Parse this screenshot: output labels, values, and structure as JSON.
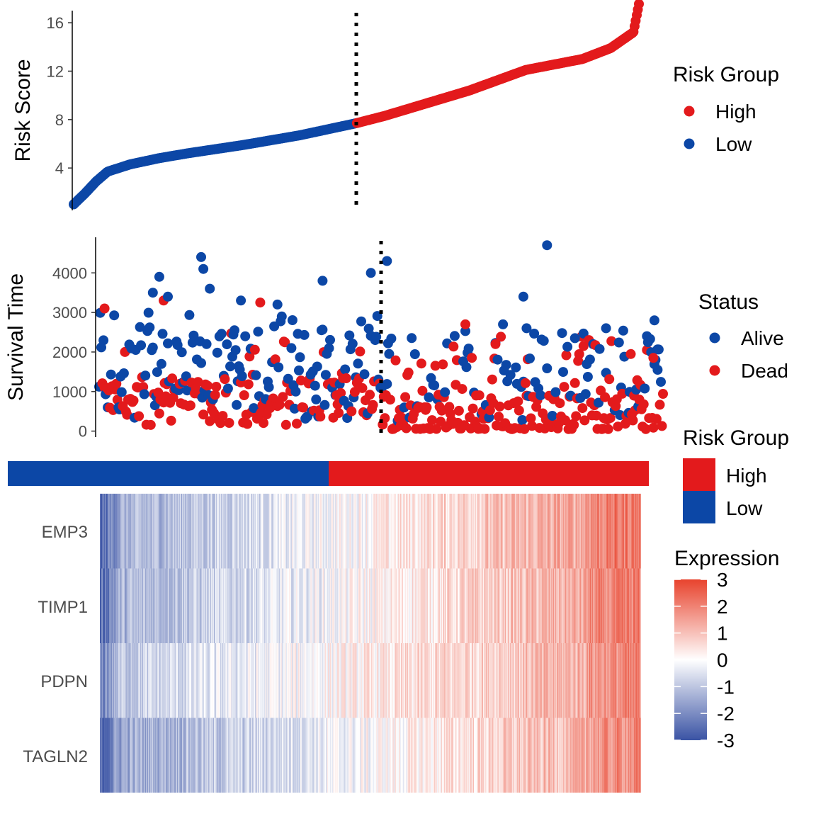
{
  "colors": {
    "high": "#e31a1c",
    "low": "#0c47a6",
    "cutoff_line": "#000000"
  },
  "chart_data": [
    {
      "id": "risk_score",
      "type": "scatter",
      "title": "",
      "xlabel": "",
      "ylabel": "Risk Score",
      "ylim": [
        0.5,
        17
      ],
      "yticks": [
        4,
        8,
        12,
        16
      ],
      "n_samples": 526,
      "n_low": 263,
      "cutoff_index": 263,
      "score_curve": {
        "x_fraction": [
          0,
          0.02,
          0.04,
          0.06,
          0.08,
          0.1,
          0.15,
          0.2,
          0.3,
          0.4,
          0.45,
          0.5,
          0.55,
          0.6,
          0.7,
          0.8,
          0.9,
          0.95,
          0.99,
          1.0
        ],
        "y": [
          1.0,
          1.9,
          2.9,
          3.7,
          4.0,
          4.3,
          4.8,
          5.2,
          5.9,
          6.7,
          7.2,
          7.7,
          8.3,
          9.0,
          10.4,
          12.1,
          13.0,
          13.9,
          15.2,
          16.3
        ]
      },
      "legend": {
        "title": "Risk Group",
        "items": [
          "High",
          "Low"
        ],
        "placement": "right"
      }
    },
    {
      "id": "survival",
      "type": "scatter",
      "title": "",
      "xlabel": "",
      "ylabel": "Survival Time",
      "ylim": [
        -150,
        4900
      ],
      "yticks": [
        0,
        1000,
        2000,
        3000,
        4000
      ],
      "cutoff_index": 263,
      "legend": {
        "title": "Status",
        "items": [
          "Alive",
          "Dead"
        ],
        "placement": "right"
      },
      "highlight_points": [
        {
          "i": 95,
          "t": 4400,
          "status": "Alive"
        },
        {
          "i": 97,
          "t": 4100,
          "status": "Alive"
        },
        {
          "i": 103,
          "t": 3600,
          "status": "Alive"
        },
        {
          "i": 56,
          "t": 3900,
          "status": "Alive"
        },
        {
          "i": 50,
          "t": 3500,
          "status": "Alive"
        },
        {
          "i": 60,
          "t": 3300,
          "status": "Dead"
        },
        {
          "i": 5,
          "t": 3100,
          "status": "Dead"
        },
        {
          "i": 64,
          "t": 3400,
          "status": "Alive"
        },
        {
          "i": 208,
          "t": 3800,
          "status": "Alive"
        },
        {
          "i": 253,
          "t": 4000,
          "status": "Alive"
        },
        {
          "i": 268,
          "t": 4300,
          "status": "Alive"
        },
        {
          "i": 417,
          "t": 4700,
          "status": "Alive"
        },
        {
          "i": 395,
          "t": 3400,
          "status": "Alive"
        },
        {
          "i": 398,
          "t": 2600,
          "status": "Alive"
        },
        {
          "i": 376,
          "t": 2700,
          "status": "Alive"
        },
        {
          "i": 443,
          "t": 2350,
          "status": "Alive"
        },
        {
          "i": 472,
          "t": 2600,
          "status": "Alive"
        },
        {
          "i": 510,
          "t": 2400,
          "status": "Alive"
        },
        {
          "i": 517,
          "t": 2800,
          "status": "Alive"
        },
        {
          "i": 341,
          "t": 2700,
          "status": "Dead"
        },
        {
          "i": 369,
          "t": 2200,
          "status": "Dead"
        },
        {
          "i": 451,
          "t": 2150,
          "status": "Dead"
        },
        {
          "i": 516,
          "t": 1850,
          "status": "Dead"
        },
        {
          "i": 520,
          "t": 1550,
          "status": "Alive"
        },
        {
          "i": 150,
          "t": 3250,
          "status": "Dead"
        },
        {
          "i": 132,
          "t": 3300,
          "status": "Alive"
        },
        {
          "i": 166,
          "t": 3200,
          "status": "Alive"
        }
      ]
    },
    {
      "id": "heatmap",
      "type": "heatmap",
      "title": "",
      "rows": [
        "EMP3",
        "TIMP1",
        "PDPN",
        "TAGLN2"
      ],
      "columns": 526,
      "group_bar": {
        "title": "Risk Group",
        "items": [
          "High",
          "Low"
        ],
        "low_fraction": 0.5
      },
      "color_scale": {
        "title": "Expression",
        "min": -3,
        "mid": 0,
        "max": 3,
        "low_color": "#3a53a4",
        "mid_color": "#ffffff",
        "high_color": "#e8432d",
        "ticks": [
          "3",
          "2",
          "1",
          "0",
          "-1",
          "-2",
          "-3"
        ]
      },
      "row_trend": {
        "EMP3": [
          -1.5,
          1.8
        ],
        "TIMP1": [
          -1.4,
          1.6
        ],
        "PDPN": [
          -1.0,
          1.5
        ],
        "TAGLN2": [
          -1.6,
          1.5
        ]
      }
    }
  ]
}
